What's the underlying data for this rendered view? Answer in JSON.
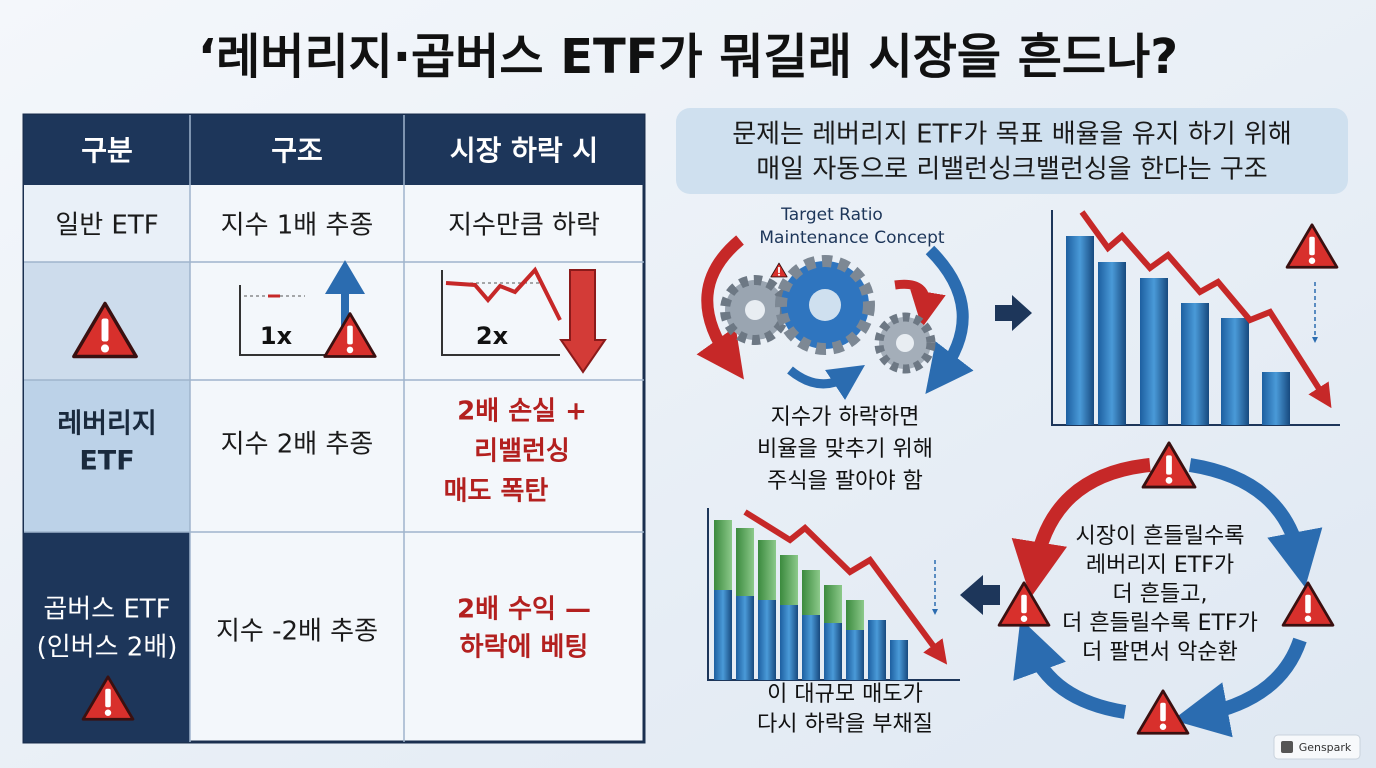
{
  "header": {
    "title": "‘레버리지·곱버스 ETF가 뭐길래 시장을 흔드나?"
  },
  "table": {
    "headers": [
      "구분",
      "구조",
      "시장 하락 시"
    ],
    "rows": [
      {
        "label": [
          "일반 ETF"
        ],
        "structure": [
          "지수 1배 추종"
        ],
        "on_decline": [
          "지수만큼 하락"
        ]
      },
      {
        "chart_labels": [
          "1x",
          "2x"
        ]
      },
      {
        "label": [
          "레버리지",
          "ETF"
        ],
        "structure": [
          "지수 2배 추종"
        ],
        "on_decline": [
          "2배 손실 +",
          "리밸런싱",
          "매도 폭탄"
        ]
      },
      {
        "label": [
          "곱버스 ETF",
          "(인버스 2배)"
        ],
        "structure": [
          "지수 -2배 추종"
        ],
        "on_decline": [
          "2배 수익 —",
          "하락에 베팅"
        ]
      }
    ]
  },
  "callout": [
    "문제는 레버리지 ETF가 목표 배율을 유지 하기 위해",
    "매일 자동으로 리밸런싱크밸런싱을 한다는 구조"
  ],
  "concept": [
    "Target Ratio",
    "Maintenance Concept"
  ],
  "step1": [
    "지수가 하락하면",
    "비율을 맞추기 위해",
    "주식을 팔아야 함"
  ],
  "cycle": [
    "시장이 흔들릴수록",
    "레버리지 ETF가",
    "더 흔들고,",
    "더 흔들릴수록 ETF가",
    "더 팔면서 악순환"
  ],
  "step3": [
    "이 대규모 매도가",
    "다시 하락을 부채질"
  ],
  "badge": "Genspark"
}
